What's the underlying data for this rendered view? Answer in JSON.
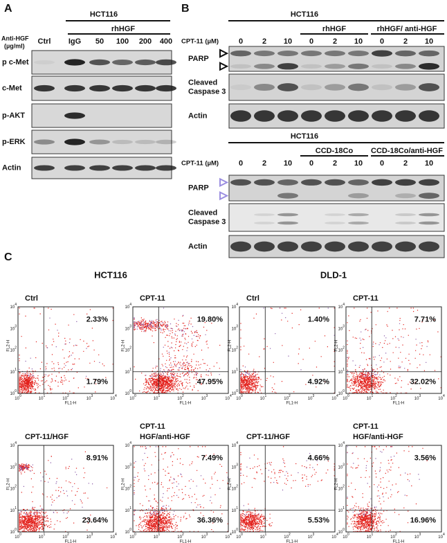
{
  "panel_a": {
    "label": "A",
    "cell_line": "HCT116",
    "treatment_label": [
      "Anti-HGF",
      "(µg/ml)"
    ],
    "group": "rhHGF",
    "lanes": [
      "Ctrl",
      "IgG",
      "50",
      "100",
      "200",
      "400"
    ],
    "rows": [
      "p c-Met",
      "c-Met",
      "p-AKT",
      "p-ERK",
      "Actin"
    ]
  },
  "panel_b": {
    "label": "B",
    "blots": [
      {
        "cell_line": "HCT116",
        "dose_label": "CPT-11 (µM)",
        "groups": [
          "rhHGF",
          "rhHGF/ anti-HGF"
        ],
        "doses": [
          "0",
          "2",
          "10",
          "0",
          "2",
          "10",
          "0",
          "2",
          "10"
        ],
        "rows": [
          [
            "PARP"
          ],
          [
            "Cleaved",
            "Caspase 3"
          ],
          [
            "Actin"
          ]
        ]
      },
      {
        "cell_line": "HCT116",
        "dose_label": "CPT-11 (µM)",
        "groups": [
          "CCD-18Co",
          "CCD-18Co/anti-HGF"
        ],
        "doses": [
          "0",
          "2",
          "10",
          "0",
          "2",
          "10",
          "0",
          "2",
          "10"
        ],
        "rows": [
          [
            "PARP"
          ],
          [
            "Cleaved",
            "Caspase 3"
          ],
          [
            "Actin"
          ]
        ]
      }
    ]
  },
  "panel_c": {
    "label": "C",
    "cell_lines": [
      "HCT116",
      "DLD-1"
    ],
    "x_axis": "FL1-H",
    "y_axis": "FL2-H",
    "tick_base": "10",
    "tick_exponents": [
      "0",
      "1",
      "2",
      "3",
      "4"
    ],
    "plots": [
      {
        "title": [
          "Ctrl"
        ],
        "upper_right": "2.33%",
        "lower_right": "1.79%"
      },
      {
        "title": [
          "CPT-11"
        ],
        "upper_right": "19.80%",
        "lower_right": "47.95%"
      },
      {
        "title": [
          "Ctrl"
        ],
        "upper_right": "1.40%",
        "lower_right": "4.92%"
      },
      {
        "title": [
          "CPT-11"
        ],
        "upper_right": "7.71%",
        "lower_right": "32.02%"
      },
      {
        "title": [
          "CPT-11/HGF"
        ],
        "upper_right": "8.91%",
        "lower_right": "23.64%"
      },
      {
        "title": [
          "CPT-11",
          "HGF/anti-HGF"
        ],
        "upper_right": "7.49%",
        "lower_right": "36.36%"
      },
      {
        "title": [
          "CPT-11/HGF"
        ],
        "upper_right": "4.66%",
        "lower_right": "5.53%"
      },
      {
        "title": [
          "CPT-11",
          "HGF/anti-HGF"
        ],
        "upper_right": "3.56%",
        "lower_right": "16.96%"
      }
    ]
  }
}
